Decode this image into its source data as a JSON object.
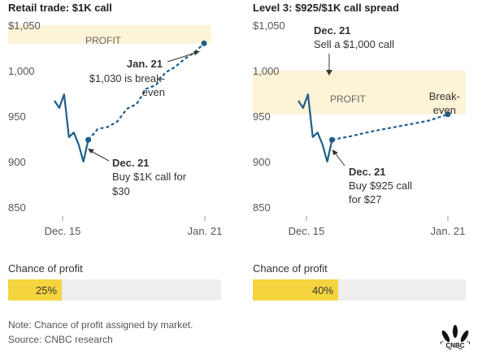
{
  "charts": [
    {
      "title": "Retail trade: $1K call",
      "y_ticks": [
        "$1,050",
        "1,000",
        "950",
        "900",
        "850"
      ],
      "x_ticks": [
        "Dec. 15",
        "Jan. 21"
      ],
      "profit_label": "PROFIT",
      "annotations": {
        "break_even": {
          "heading": "Jan. 21",
          "lines": [
            "$1,030 is break-",
            "even"
          ]
        },
        "entry": {
          "heading": "Dec. 21",
          "lines": [
            "Buy $1K call for",
            "$30"
          ]
        }
      },
      "chance_label": "Chance of profit",
      "chance_value": "25%"
    },
    {
      "title": "Level 3: $925/$1K call spread",
      "y_ticks": [
        "$1,050",
        "1,000",
        "950",
        "900",
        "850"
      ],
      "x_ticks": [
        "Dec. 15",
        "Jan. 21"
      ],
      "profit_label": "PROFIT",
      "annotations": {
        "sell": {
          "heading": "Dec. 21",
          "lines": [
            "Sell a $1,000 call"
          ]
        },
        "break_even": {
          "lines": [
            "Break-",
            "even"
          ]
        },
        "entry": {
          "heading": "Dec. 21",
          "lines": [
            "Buy $925 call",
            "for $27"
          ]
        }
      },
      "chance_label": "Chance of profit",
      "chance_value": "40%"
    }
  ],
  "note": "Note: Chance of profit assigned by market.",
  "source": "Source: CNBC research",
  "colors": {
    "line": "#1f5e8c",
    "profit_band": "#fdf3d6",
    "bar": "#f5d43f",
    "track": "#eeeeee",
    "annotation": "#333333"
  },
  "chart_data": [
    {
      "type": "line",
      "title": "Retail trade: $1K call",
      "x": [
        "Dec. 15",
        "Jan. 21"
      ],
      "ylim": [
        850,
        1050
      ],
      "y_ticks": [
        1050,
        1000,
        950,
        900,
        850
      ],
      "grid": false,
      "profit_range": [
        1030,
        1050
      ],
      "price_history": [
        {
          "day": 0,
          "y": 967
        },
        {
          "day": 1,
          "y": 959
        },
        {
          "day": 2,
          "y": 974
        },
        {
          "day": 3,
          "y": 927
        },
        {
          "day": 4,
          "y": 932
        },
        {
          "day": 5,
          "y": 919
        },
        {
          "day": 6,
          "y": 900
        },
        {
          "day": 7,
          "y": 924
        }
      ],
      "projected_path": [
        {
          "day": 7,
          "y": 924
        },
        {
          "day": 9,
          "y": 936
        },
        {
          "day": 11,
          "y": 938
        },
        {
          "day": 13,
          "y": 944
        },
        {
          "day": 15,
          "y": 958
        },
        {
          "day": 17,
          "y": 963
        },
        {
          "day": 19,
          "y": 980
        },
        {
          "day": 21,
          "y": 984
        },
        {
          "day": 23,
          "y": 998
        },
        {
          "day": 25,
          "y": 1004
        },
        {
          "day": 27,
          "y": 1013
        },
        {
          "day": 29,
          "y": 1020
        },
        {
          "day": 31,
          "y": 1030
        }
      ],
      "markers": [
        {
          "label": "Dec. 21",
          "day": 7,
          "y": 924
        },
        {
          "label": "Jan. 21",
          "day": 31,
          "y": 1030
        }
      ],
      "chance_of_profit": 25
    },
    {
      "type": "line",
      "title": "Level 3: $925/$1K call spread",
      "x": [
        "Dec. 15",
        "Jan. 21"
      ],
      "ylim": [
        850,
        1050
      ],
      "y_ticks": [
        1050,
        1000,
        950,
        900,
        850
      ],
      "grid": false,
      "profit_range": [
        952,
        1000
      ],
      "price_history": [
        {
          "day": 0,
          "y": 967
        },
        {
          "day": 1,
          "y": 959
        },
        {
          "day": 2,
          "y": 974
        },
        {
          "day": 3,
          "y": 927
        },
        {
          "day": 4,
          "y": 932
        },
        {
          "day": 5,
          "y": 919
        },
        {
          "day": 6,
          "y": 900
        },
        {
          "day": 7,
          "y": 924
        }
      ],
      "projected_path": [
        {
          "day": 7,
          "y": 924
        },
        {
          "day": 11,
          "y": 928
        },
        {
          "day": 15,
          "y": 933
        },
        {
          "day": 19,
          "y": 937
        },
        {
          "day": 23,
          "y": 941
        },
        {
          "day": 27,
          "y": 945
        },
        {
          "day": 31,
          "y": 952
        }
      ],
      "markers": [
        {
          "label": "Dec. 21",
          "day": 7,
          "y": 924
        },
        {
          "label": "Jan. 21",
          "day": 31,
          "y": 952
        }
      ],
      "chance_of_profit": 40
    }
  ]
}
